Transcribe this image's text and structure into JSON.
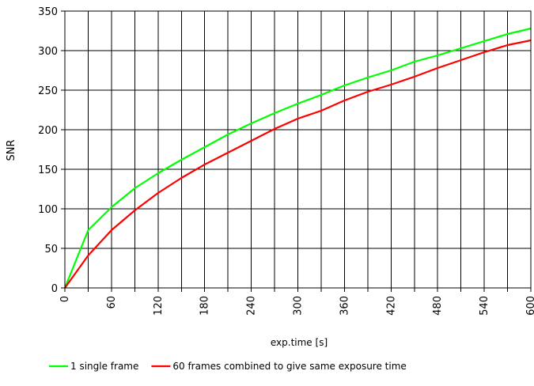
{
  "chart_data": {
    "type": "line",
    "title": "",
    "xlabel": "exp.time [s]",
    "ylabel": "SNR",
    "xlim": [
      0,
      600
    ],
    "ylim": [
      0,
      350
    ],
    "xticks": [
      0,
      30,
      60,
      90,
      120,
      150,
      180,
      210,
      240,
      270,
      300,
      330,
      360,
      390,
      420,
      450,
      480,
      510,
      540,
      570,
      600
    ],
    "xtick_labels": [
      "0",
      "60",
      "120",
      "180",
      "240",
      "300",
      "360",
      "420",
      "480",
      "540",
      "600"
    ],
    "xtick_label_values": [
      0,
      60,
      120,
      180,
      240,
      300,
      360,
      420,
      480,
      540,
      600
    ],
    "yticks": [
      0,
      50,
      100,
      150,
      200,
      250,
      300,
      350
    ],
    "ytick_labels": [
      "0",
      "50",
      "100",
      "150",
      "200",
      "250",
      "300",
      "350"
    ],
    "grid": true,
    "legend_position": "bottom-center",
    "x": [
      0,
      30,
      60,
      90,
      120,
      150,
      180,
      210,
      240,
      270,
      300,
      330,
      360,
      390,
      420,
      450,
      480,
      510,
      540,
      570,
      600
    ],
    "series": [
      {
        "name": "1 single frame",
        "color": "#00ff00",
        "values": [
          0,
          73,
          102,
          126,
          145,
          162,
          178,
          194,
          208,
          221,
          233,
          244,
          256,
          266,
          275,
          286,
          294,
          303,
          312,
          321,
          328
        ]
      },
      {
        "name": "60 frames combined to give same exposure time",
        "color": "#ff0000",
        "values": [
          0,
          41,
          73,
          98,
          120,
          139,
          156,
          171,
          186,
          201,
          214,
          224,
          237,
          248,
          257,
          267,
          278,
          288,
          298,
          307,
          313
        ]
      }
    ]
  }
}
